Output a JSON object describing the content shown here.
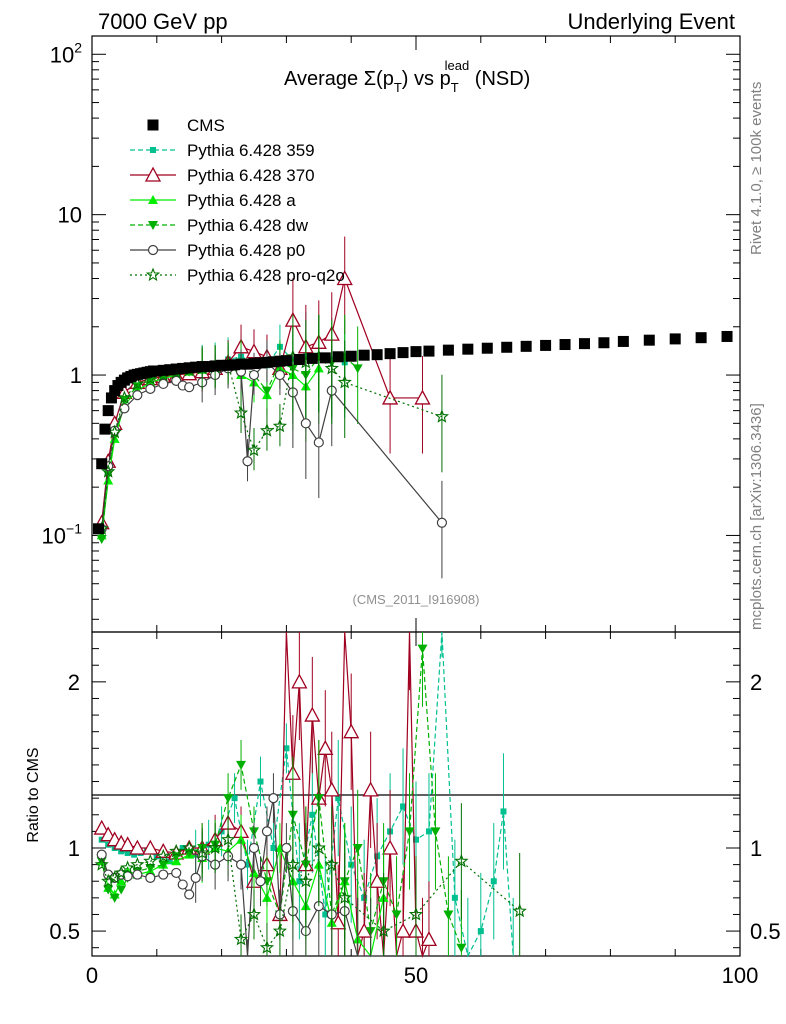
{
  "header": {
    "left": "7000 GeV pp",
    "right": "Underlying Event"
  },
  "side_labels": {
    "rivet": "Rivet 4.1.0, ≥ 100k events",
    "mcplots": "mcplots.cern.ch [arXiv:1306.3436]"
  },
  "chart_data": {
    "type": "line",
    "title": "Average Σ(p_T) vs p_T^lead (NSD)",
    "title_parts": {
      "main": "Average Σ(p",
      "t1": "T",
      "mid": ") vs p",
      "sup": "lead",
      "t2": "T",
      "end": " (NSD)"
    },
    "analysis_label": "(CMS_2011_I916908)",
    "xlabel": "",
    "ylabel_top": "",
    "ylabel_bottom": "Ratio to CMS",
    "xlim": [
      0,
      100
    ],
    "ylim_top": [
      0.025,
      130
    ],
    "ylim_bottom": [
      0.35,
      2.3
    ],
    "y_scale_top": "log",
    "x_ticks": [
      0,
      50,
      100
    ],
    "y_ticks_top": [
      {
        "value": 0.1,
        "base": "10",
        "exp": "−1"
      },
      {
        "value": 1,
        "base": "1",
        "exp": ""
      },
      {
        "value": 10,
        "base": "10",
        "exp": ""
      },
      {
        "value": 100,
        "base": "10",
        "exp": "2"
      }
    ],
    "y_ticks_bottom": [
      0.5,
      1,
      2
    ],
    "legend_position": "top-left",
    "series": [
      {
        "name": "CMS",
        "color": "#000000",
        "marker": "square",
        "line": "none",
        "legend": "CMS",
        "x": [
          1,
          1.5,
          2,
          2.5,
          3,
          3.5,
          4,
          4.5,
          5,
          5.5,
          6,
          6.5,
          7,
          7.5,
          8,
          8.5,
          9,
          9.5,
          10,
          11,
          12,
          13,
          14,
          15,
          16,
          17,
          18,
          19,
          20,
          21,
          22,
          23,
          24,
          25,
          26,
          27,
          28,
          29,
          30,
          32,
          34,
          36,
          38,
          40,
          42,
          44,
          46,
          48,
          50,
          52,
          55,
          58,
          61,
          64,
          67,
          70,
          73,
          76,
          79,
          82,
          86,
          90,
          94,
          98
        ],
        "y": [
          0.11,
          0.28,
          0.46,
          0.6,
          0.72,
          0.8,
          0.86,
          0.9,
          0.93,
          0.96,
          0.98,
          1.0,
          1.01,
          1.02,
          1.03,
          1.04,
          1.05,
          1.06,
          1.06,
          1.07,
          1.08,
          1.09,
          1.1,
          1.11,
          1.12,
          1.13,
          1.13,
          1.14,
          1.15,
          1.15,
          1.16,
          1.17,
          1.17,
          1.18,
          1.19,
          1.2,
          1.21,
          1.22,
          1.23,
          1.25,
          1.27,
          1.28,
          1.3,
          1.31,
          1.33,
          1.34,
          1.36,
          1.38,
          1.4,
          1.41,
          1.43,
          1.45,
          1.47,
          1.49,
          1.51,
          1.53,
          1.55,
          1.57,
          1.59,
          1.62,
          1.65,
          1.68,
          1.71,
          1.74
        ],
        "ratio_x": [],
        "ratio_y": []
      },
      {
        "name": "Pythia 6.428 359",
        "color": "#00c090",
        "marker": "square-small",
        "line": "dashed",
        "legend": "Pythia 6.428 359",
        "x": [
          1.5,
          2.5,
          3.5,
          5,
          7,
          9,
          11,
          13,
          15,
          17,
          19,
          21,
          23,
          25,
          27,
          29,
          31,
          33,
          35,
          37,
          39
        ],
        "y": [
          0.12,
          0.28,
          0.49,
          0.78,
          0.92,
          0.98,
          1.02,
          1.06,
          1.09,
          1.12,
          1.16,
          1.25,
          1.3,
          1.22,
          1.15,
          1.5,
          1.25,
          1.35,
          1.3,
          1.25,
          1.2
        ],
        "ratio_x": [
          1.5,
          2.5,
          3.5,
          4.5,
          5.5,
          6.5,
          7.5,
          8.5,
          10,
          12,
          14,
          16,
          18,
          20,
          22,
          24,
          26,
          28,
          30,
          32,
          34,
          36,
          38,
          40,
          42,
          44,
          46,
          48,
          50,
          52,
          54,
          56,
          58,
          60,
          62,
          63.5,
          65
        ],
        "ratio_y": [
          1.05,
          1.02,
          1.0,
          0.98,
          0.97,
          0.96,
          0.97,
          0.98,
          0.95,
          0.92,
          1.0,
          0.96,
          1.02,
          1.1,
          1.3,
          0.9,
          1.4,
          1.0,
          1.6,
          0.8,
          1.2,
          0.6,
          1.3,
          0.9,
          0.7,
          0.95,
          1.1,
          1.25,
          1.05,
          1.1,
          2.5,
          0.7,
          0.35,
          0.5,
          0.8,
          1.22,
          0.35
        ]
      },
      {
        "name": "Pythia 6.428 370",
        "color": "#a00020",
        "marker": "triangle-open",
        "line": "solid",
        "legend": "Pythia 6.428 370",
        "x": [
          1.5,
          2.5,
          3.5,
          5,
          7,
          9,
          11,
          13,
          15,
          17,
          19,
          21,
          23,
          25,
          27,
          29,
          31,
          33,
          35,
          37,
          39,
          46,
          51
        ],
        "y": [
          0.12,
          0.29,
          0.5,
          0.78,
          0.9,
          0.95,
          0.98,
          1.0,
          1.02,
          1.05,
          1.1,
          1.2,
          1.5,
          1.4,
          1.3,
          1.1,
          2.2,
          1.5,
          1.6,
          1.8,
          4.0,
          0.72,
          0.72
        ],
        "ratio_x": [
          1.5,
          2.5,
          3.5,
          4.5,
          5.5,
          7,
          9,
          11,
          13,
          15,
          17,
          19,
          21,
          23,
          25,
          27,
          29,
          30,
          31,
          32,
          33,
          34,
          35,
          36,
          37,
          38,
          39,
          40,
          41,
          42,
          43,
          44,
          45,
          46,
          47,
          48,
          49,
          50,
          51,
          52
        ],
        "ratio_y": [
          1.12,
          1.08,
          1.05,
          1.03,
          1.02,
          1.0,
          1.0,
          0.98,
          0.97,
          1.0,
          1.0,
          1.05,
          1.15,
          1.1,
          0.8,
          0.9,
          0.6,
          2.6,
          1.45,
          2.0,
          0.9,
          1.8,
          1.3,
          1.6,
          1.35,
          0.55,
          2.8,
          1.7,
          0.35,
          0.5,
          1.35,
          0.8,
          0.35,
          1.0,
          0.35,
          0.5,
          2.3,
          0.5,
          0.35,
          0.45
        ]
      },
      {
        "name": "Pythia 6.428 a",
        "color": "#00ee00",
        "marker": "triangle",
        "line": "solid",
        "legend": "Pythia 6.428 a",
        "x": [
          1.5,
          2.5,
          3.5,
          5,
          7,
          9,
          11,
          13,
          15,
          17,
          19,
          21,
          23,
          25,
          27,
          29,
          31,
          33,
          35
        ],
        "y": [
          0.1,
          0.22,
          0.4,
          0.65,
          0.8,
          0.9,
          0.95,
          1.0,
          1.05,
          1.08,
          1.1,
          1.15,
          1.0,
          0.9,
          0.75,
          1.1,
          1.0,
          0.85,
          1.1
        ],
        "ratio_x": [
          1.5,
          2.5,
          3.5,
          4.5,
          5.5,
          7,
          9,
          11,
          13,
          15,
          17,
          19,
          21,
          23,
          25,
          27,
          29,
          31,
          33,
          35,
          37,
          39,
          41,
          43,
          45
        ],
        "ratio_y": [
          0.92,
          0.76,
          0.72,
          0.8,
          0.86,
          0.84,
          0.86,
          0.9,
          0.92,
          0.96,
          0.94,
          1.0,
          0.98,
          1.05,
          0.85,
          0.7,
          1.0,
          0.8,
          0.65,
          0.9,
          0.55,
          0.8,
          0.45,
          0.35,
          0.7
        ]
      },
      {
        "name": "Pythia 6.428 dw",
        "color": "#00b000",
        "marker": "triangle-down",
        "line": "dashed",
        "legend": "Pythia 6.428 dw",
        "x": [
          1.5,
          2.5,
          3.5,
          5,
          7,
          9,
          11,
          13,
          15,
          17,
          19,
          21,
          23,
          25,
          27,
          29,
          31,
          33,
          35,
          37,
          39,
          41
        ],
        "y": [
          0.095,
          0.24,
          0.42,
          0.7,
          0.85,
          0.93,
          0.98,
          1.02,
          1.05,
          1.08,
          1.1,
          1.15,
          1.2,
          1.0,
          0.8,
          1.2,
          1.1,
          1.0,
          1.3,
          1.2,
          1.3,
          1.1
        ],
        "ratio_x": [
          1.5,
          2.5,
          3.5,
          4.5,
          5.5,
          7,
          9,
          11,
          13,
          15,
          17,
          19,
          21,
          23,
          25,
          27,
          29,
          31,
          33,
          35,
          37,
          39,
          41,
          43,
          45,
          47,
          49,
          51,
          53,
          55,
          57
        ],
        "ratio_y": [
          0.92,
          0.75,
          0.7,
          0.75,
          0.82,
          0.86,
          0.88,
          0.9,
          0.95,
          0.97,
          1.0,
          1.02,
          1.3,
          1.5,
          1.1,
          0.8,
          0.6,
          1.2,
          0.9,
          1.3,
          0.6,
          0.8,
          1.0,
          0.5,
          0.8,
          0.6,
          1.1,
          2.2,
          1.1,
          0.6,
          0.4
        ]
      },
      {
        "name": "Pythia 6.428 p0",
        "color": "#404040",
        "marker": "circle-open",
        "line": "solid",
        "legend": "Pythia 6.428 p0",
        "x": [
          1.5,
          2.5,
          3.5,
          5,
          7,
          9,
          11,
          13,
          14,
          15,
          17,
          19,
          21,
          23,
          24,
          25,
          27,
          29,
          31,
          33,
          35,
          37,
          54
        ],
        "y": [
          0.11,
          0.27,
          0.45,
          0.62,
          0.75,
          0.82,
          0.88,
          0.92,
          0.86,
          0.84,
          0.9,
          1.0,
          1.1,
          1.05,
          0.29,
          1.0,
          1.2,
          1.0,
          0.78,
          0.5,
          0.38,
          0.8,
          0.12
        ],
        "ratio_x": [
          1.5,
          2.5,
          3.5,
          4.5,
          5.5,
          7,
          9,
          11,
          13,
          14,
          15,
          16,
          17,
          19,
          21,
          23,
          24,
          25,
          26,
          27,
          28,
          29,
          30,
          31,
          33,
          35,
          37,
          39,
          41,
          43,
          45
        ],
        "ratio_y": [
          0.96,
          0.84,
          0.82,
          0.84,
          0.83,
          0.84,
          0.82,
          0.84,
          0.85,
          0.78,
          0.72,
          0.82,
          0.95,
          0.9,
          0.95,
          0.9,
          0.3,
          1.0,
          0.8,
          1.1,
          1.3,
          0.6,
          1.0,
          0.62,
          0.5,
          0.65,
          0.6,
          0.62,
          0.35,
          0.35,
          0.35
        ]
      },
      {
        "name": "Pythia 6.428 pro-q2o",
        "color": "#007000",
        "marker": "star",
        "line": "dotted",
        "legend": "Pythia 6.428 pro-q2o",
        "x": [
          1.5,
          2.5,
          3.5,
          5,
          7,
          9,
          11,
          13,
          15,
          17,
          19,
          21,
          23,
          25,
          27,
          29,
          31,
          33,
          35,
          37,
          39,
          54
        ],
        "y": [
          0.11,
          0.25,
          0.44,
          0.72,
          0.88,
          0.95,
          1.0,
          1.04,
          1.07,
          1.1,
          1.12,
          1.18,
          0.58,
          0.34,
          0.45,
          0.48,
          1.3,
          1.2,
          1.3,
          1.1,
          0.9,
          0.55
        ],
        "ratio_x": [
          1.5,
          2.5,
          3.5,
          4.5,
          5.5,
          7,
          9,
          11,
          13,
          15,
          17,
          19,
          21,
          23,
          25,
          27,
          29,
          31,
          33,
          35,
          37,
          39,
          45,
          50,
          57,
          66
        ],
        "ratio_y": [
          0.9,
          0.8,
          0.82,
          0.85,
          0.88,
          0.9,
          0.92,
          0.95,
          0.98,
          1.0,
          0.97,
          1.0,
          1.05,
          0.45,
          0.6,
          0.4,
          0.5,
          0.9,
          0.8,
          1.0,
          0.9,
          0.7,
          0.5,
          0.6,
          0.92,
          0.62
        ]
      }
    ]
  }
}
